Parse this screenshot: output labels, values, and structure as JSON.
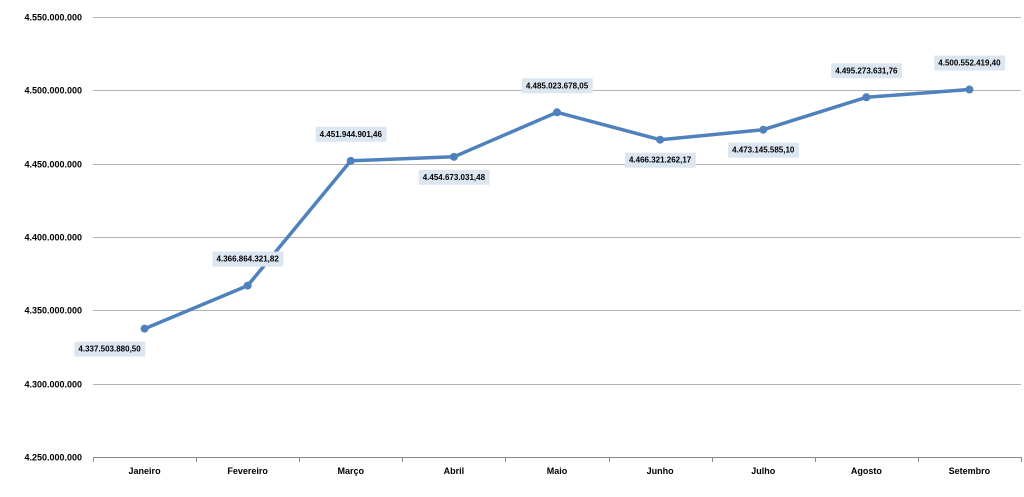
{
  "chart_data": {
    "type": "line",
    "categories": [
      "Janeiro",
      "Fevereiro",
      "Março",
      "Abril",
      "Maio",
      "Junho",
      "Julho",
      "Agosto",
      "Setembro"
    ],
    "series": [
      {
        "values": [
          4337503880.5,
          4366864321.82,
          4451944901.46,
          4454673031.48,
          4485023678.05,
          4466321262.17,
          4473145585.1,
          4495273631.76,
          4500552419.4
        ],
        "labels": [
          "4.337.503.880,50",
          "4.366.864.321,82",
          "4.451.944.901,46",
          "4.454.673.031,48",
          "4.485.023.678,05",
          "4.466.321.262,17",
          "4.473.145.585,10",
          "4.495.273.631,76",
          "4.500.552.419,40"
        ],
        "color": "#4f81bd"
      }
    ],
    "ylim": [
      4250000000,
      4550000000
    ],
    "yticks": [
      4250000000,
      4300000000,
      4350000000,
      4400000000,
      4450000000,
      4500000000,
      4550000000
    ],
    "ytick_labels": [
      "4.250.000.000",
      "4.300.000.000",
      "4.350.000.000",
      "4.400.000.000",
      "4.450.000.000",
      "4.500.000.000",
      "4.550.000.000"
    ],
    "grid": true,
    "legend": "none",
    "title": "",
    "xlabel": "",
    "ylabel": "",
    "data_label_background": "#dce6f1"
  }
}
